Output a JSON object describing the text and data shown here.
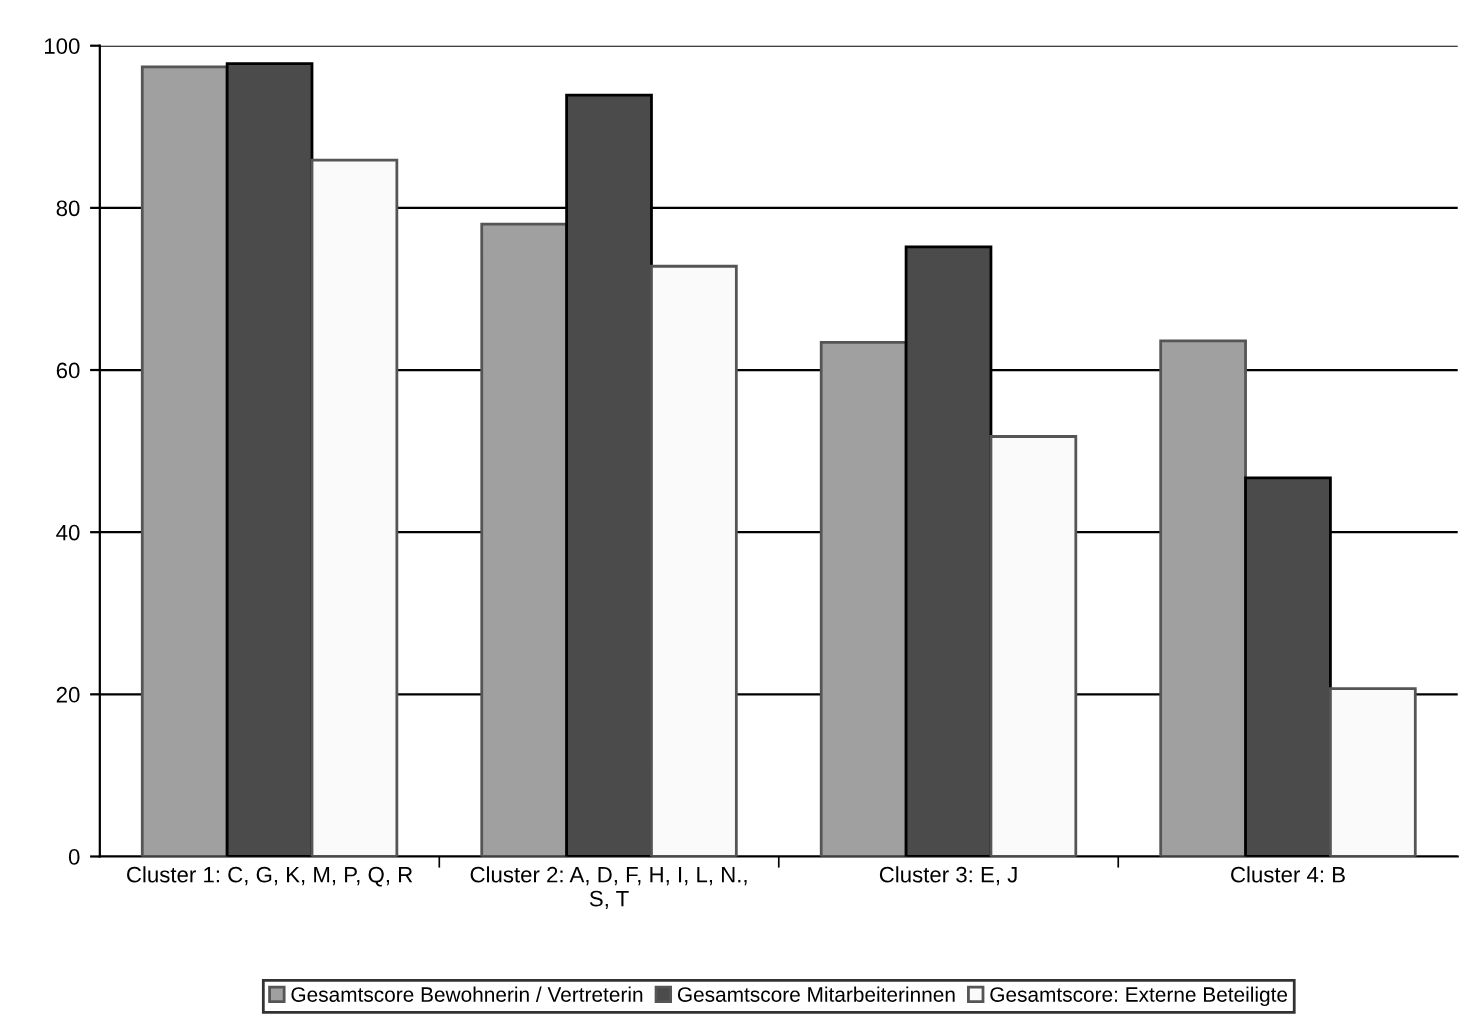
{
  "chart_data": {
    "type": "bar",
    "categories": [
      "Cluster 1: C, G, K, M, P, Q, R",
      "Cluster 2: A, D, F, H, I, L, N.,\nS, T",
      "Cluster 3: E, J",
      "Cluster 4: B"
    ],
    "series": [
      {
        "name": "Gesamtscore Bewohnerin / Vertreterin",
        "color": "#a0a0a0",
        "values": [
          97.4,
          78,
          63.4,
          63.6
        ]
      },
      {
        "name": "Gesamtscore Mitarbeiterinnen",
        "color": "#4b4b4b",
        "values": [
          97.8,
          93.9,
          75.2,
          46.7
        ]
      },
      {
        "name": "Gesamtscore: Externe Beteiligte",
        "color": "#fafafa",
        "values": [
          85.9,
          72.8,
          51.8,
          20.7
        ]
      }
    ],
    "ylim": [
      0,
      100
    ],
    "yticks": [
      0,
      20,
      40,
      60,
      80,
      100
    ],
    "grid": "y",
    "legend": "bottom"
  }
}
